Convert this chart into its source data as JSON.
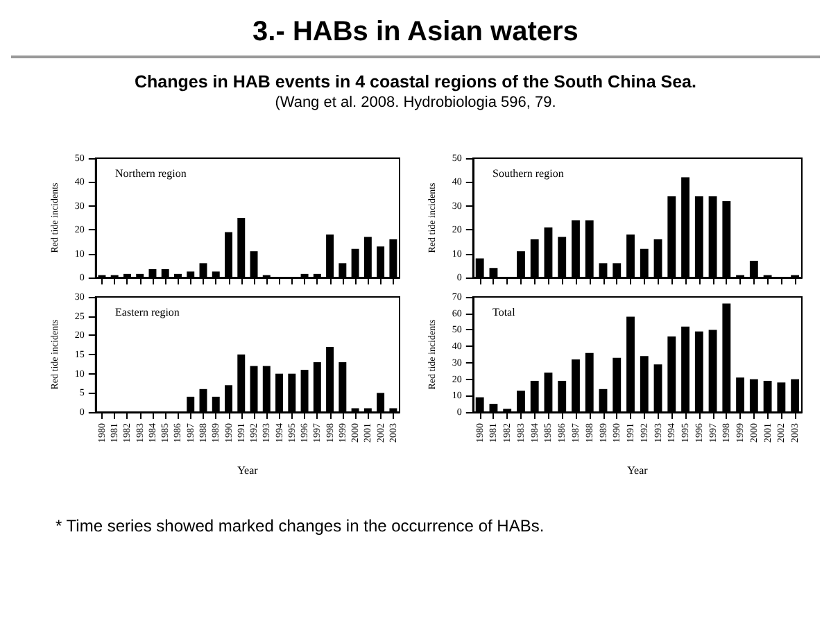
{
  "chart_data": [
    {
      "type": "bar",
      "title": "Northern region",
      "ylabel": "Red tide incidents",
      "annotations": [
        "3.- HABs in Asian waters",
        "Changes in HAB events in 4 coastal regions of the South China Sea.",
        "(Wang et al. 2008. Hydrobiologia 596, 79.",
        "* Time series showed marked changes in the occurrence of HABs."
      ],
      "categories": [
        "1980",
        "1981",
        "1982",
        "1983",
        "1984",
        "1985",
        "1986",
        "1987",
        "1988",
        "1989",
        "1990",
        "1991",
        "1992",
        "1993",
        "1994",
        "1995",
        "1996",
        "1997",
        "1998",
        "1999",
        "2000",
        "2001",
        "2002",
        "2003"
      ],
      "values": [
        1,
        1,
        1.5,
        1.5,
        3.5,
        3.5,
        1.5,
        2.5,
        6,
        2.5,
        19,
        25,
        11,
        1,
        0,
        0,
        1.5,
        1.5,
        18,
        6,
        12,
        17,
        13,
        16
      ],
      "color": "#000000",
      "ylim": [
        0,
        50
      ],
      "yticks": [
        0,
        10,
        20,
        30,
        40,
        50
      ],
      "tick_labels": "y",
      "grid": false
    },
    {
      "type": "bar",
      "title": "Southern region",
      "ylabel": "Red tide incidents",
      "categories": [
        "1980",
        "1981",
        "1982",
        "1983",
        "1984",
        "1985",
        "1986",
        "1987",
        "1988",
        "1989",
        "1990",
        "1991",
        "1992",
        "1993",
        "1994",
        "1995",
        "1996",
        "1997",
        "1998",
        "1999",
        "2000",
        "2001",
        "2002",
        "2003"
      ],
      "values": [
        8,
        4,
        0,
        11,
        16,
        21,
        17,
        24,
        24,
        6,
        6,
        18,
        12,
        16,
        34,
        42,
        34,
        34,
        32,
        1,
        7,
        1,
        0,
        1
      ],
      "color": "#000000",
      "ylim": [
        0,
        50
      ],
      "yticks": [
        0,
        10,
        20,
        30,
        40,
        50
      ],
      "tick_labels": "y",
      "grid": false
    },
    {
      "type": "bar",
      "title": "Eastern region",
      "xlabel": "Year",
      "ylabel": "Red tide incidents",
      "categories": [
        "1980",
        "1981",
        "1982",
        "1983",
        "1984",
        "1985",
        "1986",
        "1987",
        "1988",
        "1989",
        "1990",
        "1991",
        "1992",
        "1993",
        "1994",
        "1995",
        "1996",
        "1997",
        "1998",
        "1999",
        "2000",
        "2001",
        "2002",
        "2003"
      ],
      "values": [
        0,
        0,
        0,
        0,
        0,
        0,
        0,
        4,
        6,
        4,
        7,
        15,
        12,
        12,
        10,
        10,
        11,
        13,
        17,
        13,
        1,
        1,
        5,
        1
      ],
      "color": "#000000",
      "ylim": [
        0,
        30
      ],
      "yticks": [
        0,
        5,
        10,
        15,
        20,
        25,
        30
      ],
      "grid": false
    },
    {
      "type": "bar",
      "title": "Total",
      "xlabel": "Year",
      "ylabel": "Red tide incidents",
      "categories": [
        "1980",
        "1981",
        "1982",
        "1983",
        "1984",
        "1985",
        "1986",
        "1987",
        "1988",
        "1989",
        "1990",
        "1991",
        "1992",
        "1993",
        "1994",
        "1995",
        "1996",
        "1997",
        "1998",
        "1999",
        "2000",
        "2001",
        "2002",
        "2003"
      ],
      "values": [
        9,
        5,
        2,
        13,
        19,
        24,
        19,
        32,
        36,
        14,
        33,
        58,
        34,
        29,
        46,
        52,
        49,
        50,
        66,
        21,
        20,
        19,
        18,
        20
      ],
      "color": "#000000",
      "ylim": [
        0,
        70
      ],
      "yticks": [
        0,
        10,
        20,
        30,
        40,
        50,
        60,
        70
      ],
      "grid": false
    }
  ]
}
